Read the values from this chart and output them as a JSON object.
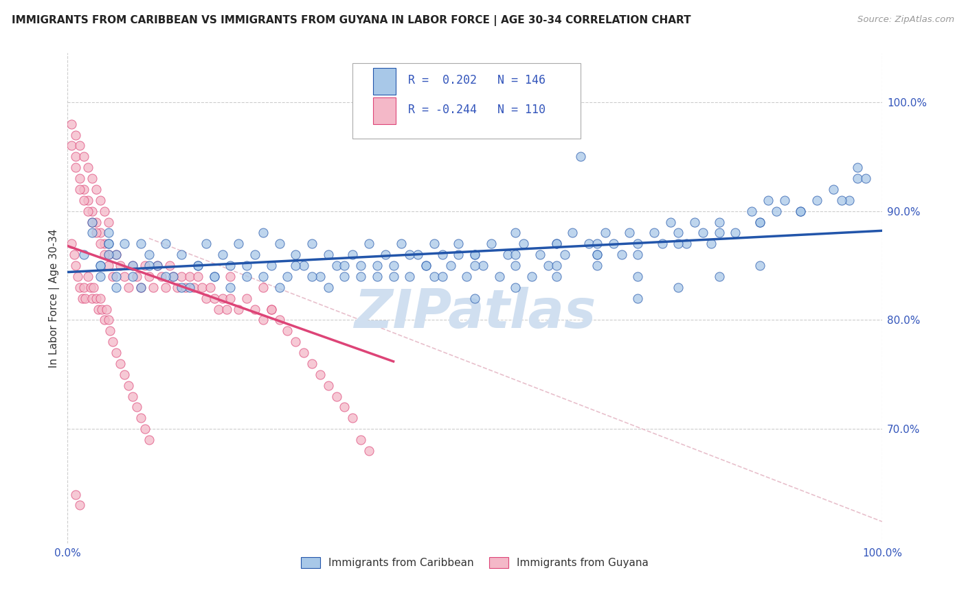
{
  "title": "IMMIGRANTS FROM CARIBBEAN VS IMMIGRANTS FROM GUYANA IN LABOR FORCE | AGE 30-34 CORRELATION CHART",
  "source_text": "Source: ZipAtlas.com",
  "ylabel": "In Labor Force | Age 30-34",
  "x_min": 0.0,
  "x_max": 1.0,
  "y_min": 0.595,
  "y_max": 1.045,
  "color_blue": "#a8c8e8",
  "color_pink": "#f4b8c8",
  "color_blue_line": "#2255aa",
  "color_pink_line": "#dd4477",
  "color_diag_line": "#e8c0cc",
  "watermark_text": "ZIPatlas",
  "watermark_color": "#d0dff0",
  "legend_r1": "R =  0.202",
  "legend_n1": "N = 146",
  "legend_r2": "R = -0.244",
  "legend_n2": "N = 110",
  "legend_label1": "Immigrants from Caribbean",
  "legend_label2": "Immigrants from Guyana",
  "right_yticks": [
    0.7,
    0.8,
    0.9,
    1.0
  ],
  "right_yticklabels": [
    "70.0%",
    "80.0%",
    "90.0%",
    "100.0%"
  ],
  "blue_scatter_x": [
    0.02,
    0.03,
    0.04,
    0.05,
    0.03,
    0.04,
    0.05,
    0.06,
    0.04,
    0.05,
    0.06,
    0.07,
    0.05,
    0.06,
    0.08,
    0.09,
    0.1,
    0.11,
    0.12,
    0.13,
    0.14,
    0.15,
    0.16,
    0.17,
    0.18,
    0.19,
    0.2,
    0.21,
    0.22,
    0.23,
    0.24,
    0.25,
    0.26,
    0.27,
    0.28,
    0.29,
    0.3,
    0.31,
    0.32,
    0.33,
    0.34,
    0.35,
    0.36,
    0.37,
    0.38,
    0.39,
    0.4,
    0.41,
    0.42,
    0.43,
    0.44,
    0.45,
    0.46,
    0.47,
    0.48,
    0.49,
    0.5,
    0.51,
    0.52,
    0.53,
    0.54,
    0.55,
    0.56,
    0.57,
    0.58,
    0.59,
    0.6,
    0.61,
    0.62,
    0.63,
    0.64,
    0.65,
    0.66,
    0.67,
    0.68,
    0.69,
    0.7,
    0.72,
    0.73,
    0.74,
    0.75,
    0.76,
    0.77,
    0.78,
    0.79,
    0.8,
    0.82,
    0.84,
    0.85,
    0.86,
    0.87,
    0.88,
    0.9,
    0.92,
    0.94,
    0.96,
    0.97,
    0.98,
    0.08,
    0.09,
    0.1,
    0.12,
    0.14,
    0.16,
    0.18,
    0.2,
    0.22,
    0.24,
    0.26,
    0.28,
    0.3,
    0.32,
    0.34,
    0.36,
    0.38,
    0.4,
    0.42,
    0.44,
    0.46,
    0.48,
    0.5,
    0.55,
    0.6,
    0.65,
    0.7,
    0.75,
    0.8,
    0.85,
    0.9,
    0.95,
    0.5,
    0.55,
    0.6,
    0.65,
    0.7,
    0.75,
    0.8,
    0.85,
    0.45,
    0.5,
    0.55,
    0.6,
    0.65,
    0.7,
    0.97
  ],
  "blue_scatter_y": [
    0.86,
    0.88,
    0.85,
    0.87,
    0.89,
    0.84,
    0.87,
    0.86,
    0.85,
    0.88,
    0.83,
    0.87,
    0.86,
    0.84,
    0.85,
    0.87,
    0.86,
    0.85,
    0.87,
    0.84,
    0.86,
    0.83,
    0.85,
    0.87,
    0.84,
    0.86,
    0.85,
    0.87,
    0.84,
    0.86,
    0.88,
    0.85,
    0.87,
    0.84,
    0.86,
    0.85,
    0.87,
    0.84,
    0.86,
    0.85,
    0.84,
    0.86,
    0.85,
    0.87,
    0.84,
    0.86,
    0.85,
    0.87,
    0.84,
    0.86,
    0.85,
    0.84,
    0.86,
    0.85,
    0.87,
    0.84,
    0.86,
    0.85,
    0.87,
    0.84,
    0.86,
    0.85,
    0.87,
    0.84,
    0.86,
    0.85,
    0.87,
    0.86,
    0.88,
    0.95,
    0.87,
    0.86,
    0.88,
    0.87,
    0.86,
    0.88,
    0.87,
    0.88,
    0.87,
    0.89,
    0.88,
    0.87,
    0.89,
    0.88,
    0.87,
    0.89,
    0.88,
    0.9,
    0.89,
    0.91,
    0.9,
    0.91,
    0.9,
    0.91,
    0.92,
    0.91,
    0.93,
    0.93,
    0.84,
    0.83,
    0.85,
    0.84,
    0.83,
    0.85,
    0.84,
    0.83,
    0.85,
    0.84,
    0.83,
    0.85,
    0.84,
    0.83,
    0.85,
    0.84,
    0.85,
    0.84,
    0.86,
    0.85,
    0.84,
    0.86,
    0.85,
    0.86,
    0.85,
    0.87,
    0.86,
    0.87,
    0.88,
    0.89,
    0.9,
    0.91,
    0.82,
    0.83,
    0.84,
    0.85,
    0.82,
    0.83,
    0.84,
    0.85,
    0.87,
    0.86,
    0.88,
    0.87,
    0.86,
    0.84,
    0.94
  ],
  "pink_scatter_x": [
    0.005,
    0.005,
    0.01,
    0.01,
    0.015,
    0.015,
    0.02,
    0.02,
    0.025,
    0.025,
    0.03,
    0.03,
    0.035,
    0.035,
    0.04,
    0.04,
    0.045,
    0.045,
    0.05,
    0.05,
    0.01,
    0.015,
    0.02,
    0.025,
    0.03,
    0.035,
    0.04,
    0.045,
    0.05,
    0.055,
    0.06,
    0.065,
    0.07,
    0.075,
    0.08,
    0.085,
    0.09,
    0.095,
    0.1,
    0.105,
    0.11,
    0.115,
    0.12,
    0.125,
    0.13,
    0.135,
    0.14,
    0.145,
    0.15,
    0.155,
    0.16,
    0.165,
    0.17,
    0.175,
    0.18,
    0.185,
    0.19,
    0.195,
    0.2,
    0.21,
    0.22,
    0.23,
    0.24,
    0.25,
    0.26,
    0.27,
    0.28,
    0.29,
    0.3,
    0.31,
    0.32,
    0.33,
    0.34,
    0.35,
    0.36,
    0.37,
    0.005,
    0.008,
    0.01,
    0.012,
    0.015,
    0.018,
    0.02,
    0.022,
    0.025,
    0.028,
    0.03,
    0.032,
    0.035,
    0.038,
    0.04,
    0.042,
    0.045,
    0.048,
    0.05,
    0.052,
    0.055,
    0.06,
    0.065,
    0.07,
    0.075,
    0.08,
    0.085,
    0.09,
    0.095,
    0.1,
    0.2,
    0.25,
    0.24,
    0.01,
    0.015
  ],
  "pink_scatter_y": [
    0.98,
    0.96,
    0.97,
    0.95,
    0.96,
    0.93,
    0.95,
    0.92,
    0.94,
    0.91,
    0.93,
    0.9,
    0.92,
    0.89,
    0.91,
    0.88,
    0.9,
    0.87,
    0.89,
    0.86,
    0.94,
    0.92,
    0.91,
    0.9,
    0.89,
    0.88,
    0.87,
    0.86,
    0.85,
    0.84,
    0.86,
    0.85,
    0.84,
    0.83,
    0.85,
    0.84,
    0.83,
    0.85,
    0.84,
    0.83,
    0.85,
    0.84,
    0.83,
    0.85,
    0.84,
    0.83,
    0.84,
    0.83,
    0.84,
    0.83,
    0.84,
    0.83,
    0.82,
    0.83,
    0.82,
    0.81,
    0.82,
    0.81,
    0.82,
    0.81,
    0.82,
    0.81,
    0.8,
    0.81,
    0.8,
    0.79,
    0.78,
    0.77,
    0.76,
    0.75,
    0.74,
    0.73,
    0.72,
    0.71,
    0.69,
    0.68,
    0.87,
    0.86,
    0.85,
    0.84,
    0.83,
    0.82,
    0.83,
    0.82,
    0.84,
    0.83,
    0.82,
    0.83,
    0.82,
    0.81,
    0.82,
    0.81,
    0.8,
    0.81,
    0.8,
    0.79,
    0.78,
    0.77,
    0.76,
    0.75,
    0.74,
    0.73,
    0.72,
    0.71,
    0.7,
    0.69,
    0.84,
    0.81,
    0.83,
    0.64,
    0.63
  ],
  "blue_trend_x": [
    0.0,
    1.0
  ],
  "blue_trend_y": [
    0.844,
    0.882
  ],
  "pink_trend_x": [
    0.0,
    0.4
  ],
  "pink_trend_y": [
    0.868,
    0.762
  ],
  "diag_line_x": [
    0.1,
    1.0
  ],
  "diag_line_y": [
    0.875,
    0.615
  ]
}
